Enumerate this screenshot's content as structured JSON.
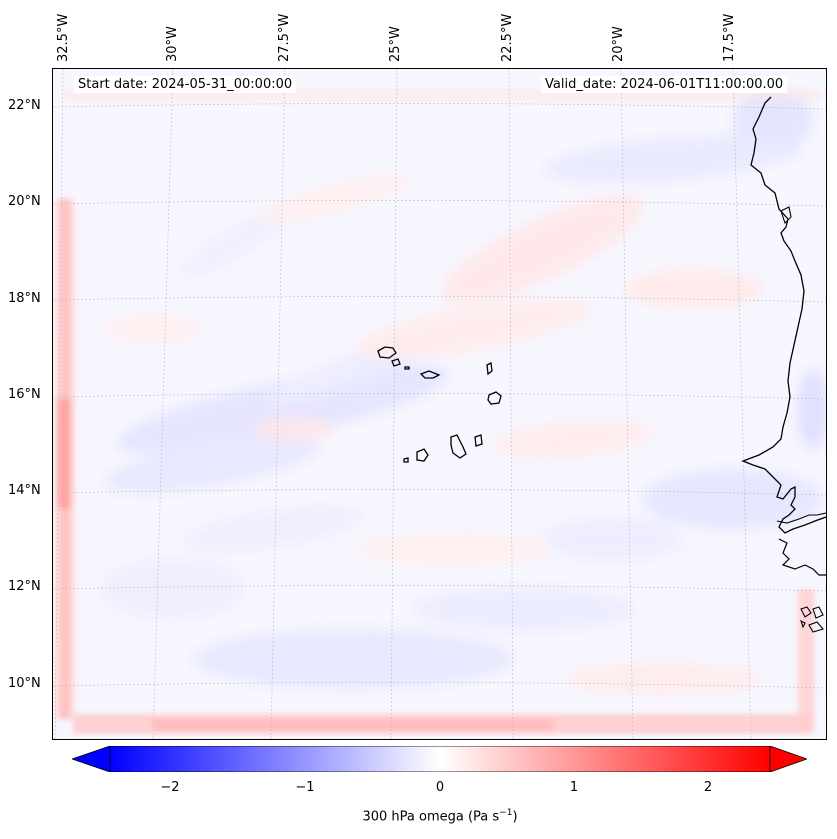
{
  "map": {
    "title_left": "Start date: 2024-05-31_00:00:00",
    "title_right": "Valid_date: 2024-06-01T11:00:00.00",
    "lon_labels": [
      "32.5°W",
      "30°W",
      "27.5°W",
      "25°W",
      "22.5°W",
      "20°W",
      "17.5°W"
    ],
    "lat_labels": [
      "22°N",
      "20°N",
      "18°N",
      "16°N",
      "14°N",
      "12°N",
      "10°N"
    ],
    "region": "Cape Verde / West Africa coast"
  },
  "colorbar": {
    "ticks": [
      "−2",
      "−1",
      "0",
      "1",
      "2"
    ],
    "label_main": "300 hPa omega (Pa s",
    "label_sup": "−1",
    "label_end": ")",
    "min_color": "#0000ff",
    "mid_color": "#ffffff",
    "max_color": "#ff0000"
  }
}
